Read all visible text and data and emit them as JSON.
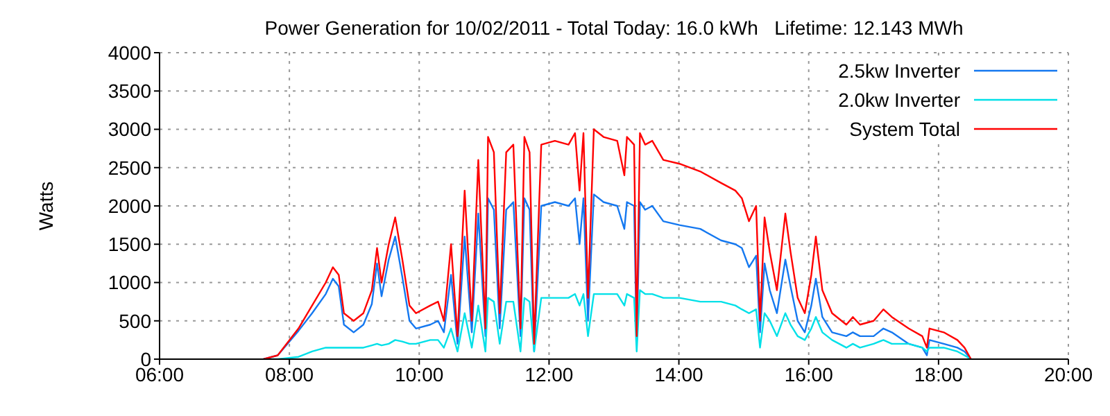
{
  "chart_data": {
    "type": "line",
    "title": "Power Generation for 10/02/2011 - Total Today: 16.0 kWh   Lifetime: 12.143 MWh",
    "ylabel": "Watts",
    "x": [
      7.6,
      7.82,
      8.14,
      8.35,
      8.56,
      8.67,
      8.76,
      8.84,
      8.99,
      9.14,
      9.27,
      9.35,
      9.42,
      9.53,
      9.63,
      9.74,
      9.85,
      9.95,
      10.17,
      10.29,
      10.38,
      10.49,
      10.59,
      10.7,
      10.81,
      10.91,
      11.02,
      11.06,
      11.15,
      11.24,
      11.34,
      11.45,
      11.56,
      11.62,
      11.7,
      11.77,
      11.88,
      12.09,
      12.3,
      12.4,
      12.47,
      12.53,
      12.6,
      12.69,
      12.84,
      13.05,
      13.16,
      13.2,
      13.31,
      13.35,
      13.4,
      13.48,
      13.59,
      13.76,
      14.01,
      14.33,
      14.65,
      14.87,
      14.97,
      15.08,
      15.19,
      15.25,
      15.32,
      15.4,
      15.51,
      15.64,
      15.72,
      15.83,
      15.94,
      16.04,
      16.11,
      16.21,
      16.36,
      16.58,
      16.68,
      16.79,
      17.0,
      17.15,
      17.28,
      17.54,
      17.75,
      17.82,
      17.86,
      18.08,
      18.29,
      18.4,
      18.5
    ],
    "series": [
      {
        "name": "2.5kw Inverter",
        "color": "#1478f0",
        "values": [
          0,
          50,
          370,
          600,
          850,
          1050,
          950,
          450,
          350,
          450,
          720,
          1250,
          820,
          1300,
          1600,
          1070,
          500,
          400,
          450,
          500,
          350,
          1100,
          200,
          1600,
          350,
          1900,
          300,
          2100,
          1950,
          400,
          1950,
          2050,
          300,
          2100,
          1950,
          100,
          2000,
          2050,
          2000,
          2100,
          1500,
          2100,
          500,
          2150,
          2050,
          2000,
          1700,
          2050,
          2000,
          200,
          2050,
          1950,
          2000,
          1800,
          1750,
          1700,
          1550,
          1500,
          1450,
          1200,
          1350,
          350,
          1250,
          900,
          600,
          1300,
          950,
          500,
          350,
          700,
          1050,
          550,
          350,
          300,
          350,
          300,
          300,
          400,
          350,
          200,
          150,
          50,
          250,
          200,
          150,
          100,
          0
        ]
      },
      {
        "name": "2.0kw Inverter",
        "color": "#00e0e8",
        "values": [
          0,
          0,
          30,
          100,
          150,
          150,
          150,
          150,
          150,
          150,
          180,
          200,
          180,
          200,
          250,
          230,
          200,
          200,
          250,
          250,
          150,
          400,
          100,
          600,
          150,
          700,
          100,
          800,
          750,
          200,
          750,
          750,
          100,
          800,
          750,
          100,
          800,
          800,
          800,
          850,
          700,
          850,
          300,
          850,
          850,
          850,
          700,
          850,
          800,
          100,
          900,
          850,
          850,
          800,
          800,
          750,
          750,
          700,
          650,
          600,
          650,
          150,
          600,
          500,
          300,
          600,
          450,
          300,
          250,
          400,
          550,
          350,
          250,
          150,
          200,
          150,
          200,
          250,
          200,
          200,
          150,
          100,
          150,
          150,
          100,
          50,
          0
        ]
      },
      {
        "name": "System Total",
        "color": "#ff0000",
        "values": [
          0,
          50,
          400,
          700,
          1000,
          1200,
          1100,
          600,
          500,
          600,
          900,
          1450,
          1000,
          1500,
          1850,
          1300,
          700,
          600,
          700,
          750,
          500,
          1500,
          300,
          2200,
          500,
          2600,
          400,
          2900,
          2700,
          600,
          2700,
          2800,
          400,
          2900,
          2700,
          200,
          2800,
          2850,
          2800,
          2950,
          2200,
          2950,
          800,
          3000,
          2900,
          2850,
          2400,
          2900,
          2800,
          300,
          2950,
          2800,
          2850,
          2600,
          2550,
          2450,
          2300,
          2200,
          2100,
          1800,
          2000,
          500,
          1850,
          1400,
          900,
          1900,
          1400,
          800,
          600,
          1100,
          1600,
          900,
          600,
          450,
          550,
          450,
          500,
          650,
          550,
          400,
          300,
          150,
          400,
          350,
          250,
          150,
          0
        ]
      }
    ],
    "xlim": [
      6,
      20
    ],
    "xticks": [
      {
        "value": 6,
        "label": "06:00"
      },
      {
        "value": 8,
        "label": "08:00"
      },
      {
        "value": 10,
        "label": "10:00"
      },
      {
        "value": 12,
        "label": "12:00"
      },
      {
        "value": 14,
        "label": "14:00"
      },
      {
        "value": 16,
        "label": "16:00"
      },
      {
        "value": 18,
        "label": "18:00"
      },
      {
        "value": 20,
        "label": "20:00"
      }
    ],
    "ylim": [
      0,
      4000
    ],
    "yticks": [
      0,
      500,
      1000,
      1500,
      2000,
      2500,
      3000,
      3500,
      4000
    ],
    "grid": true,
    "legend": "top right",
    "marker": "none",
    "line_style": "solid"
  }
}
